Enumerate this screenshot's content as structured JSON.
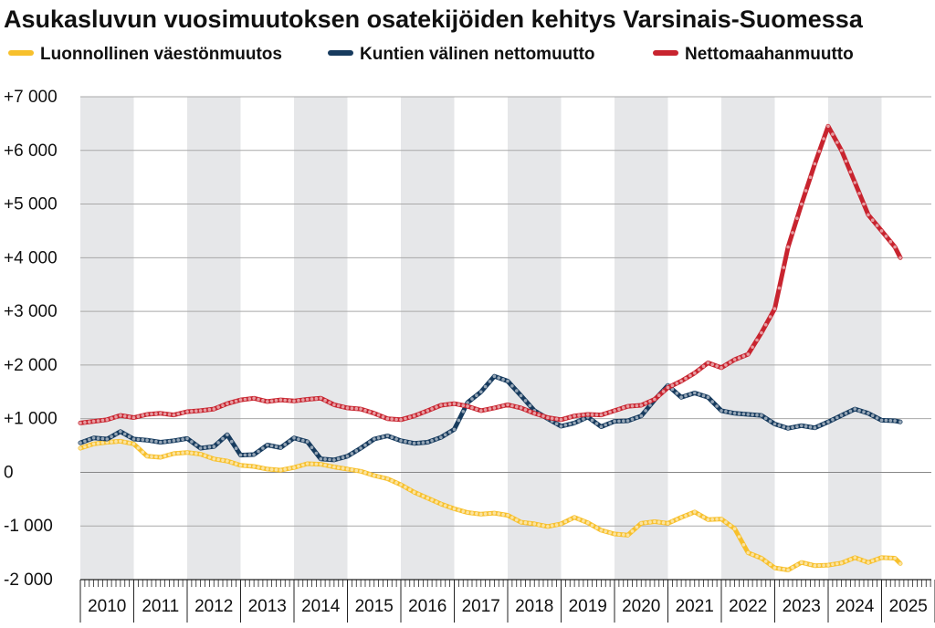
{
  "chart_data": {
    "type": "line",
    "title": "Asukasluvun vuosimuutoksen osatekijöiden kehitys Varsinais-Suomessa",
    "xlabel": "",
    "ylabel": "",
    "ylim": [
      -2000,
      7000
    ],
    "yticks": [
      -2000,
      -1000,
      0,
      1000,
      2000,
      3000,
      4000,
      5000,
      6000,
      7000
    ],
    "ytick_labels": [
      "-2 000",
      "-1 000",
      "0",
      "+1 000",
      "+2 000",
      "+3 000",
      "+4 000",
      "+5 000",
      "+6 000",
      "+7 000"
    ],
    "x_categories": [
      "2010",
      "2011",
      "2012",
      "2013",
      "2014",
      "2015",
      "2016",
      "2017",
      "2018",
      "2019",
      "2020",
      "2021",
      "2022",
      "2023",
      "2024",
      "2025"
    ],
    "x_range": [
      2010.0,
      2025.5
    ],
    "grid": true,
    "legend_position": "top",
    "alternating_year_bands": true,
    "band_color": "#e6e7e9",
    "series": [
      {
        "name": "Luonnollinen väestönmuutos",
        "color": "#f7c02c",
        "points": [
          [
            2010.0,
            450
          ],
          [
            2010.25,
            530
          ],
          [
            2010.5,
            560
          ],
          [
            2010.75,
            580
          ],
          [
            2011.0,
            530
          ],
          [
            2011.25,
            300
          ],
          [
            2011.5,
            280
          ],
          [
            2011.75,
            350
          ],
          [
            2012.0,
            370
          ],
          [
            2012.25,
            340
          ],
          [
            2012.5,
            250
          ],
          [
            2012.75,
            210
          ],
          [
            2013.0,
            130
          ],
          [
            2013.25,
            110
          ],
          [
            2013.5,
            60
          ],
          [
            2013.75,
            40
          ],
          [
            2014.0,
            90
          ],
          [
            2014.25,
            160
          ],
          [
            2014.5,
            150
          ],
          [
            2014.75,
            100
          ],
          [
            2015.0,
            60
          ],
          [
            2015.25,
            20
          ],
          [
            2015.5,
            -60
          ],
          [
            2015.75,
            -120
          ],
          [
            2016.0,
            -230
          ],
          [
            2016.25,
            -370
          ],
          [
            2016.5,
            -480
          ],
          [
            2016.75,
            -590
          ],
          [
            2017.0,
            -680
          ],
          [
            2017.25,
            -750
          ],
          [
            2017.5,
            -780
          ],
          [
            2017.75,
            -760
          ],
          [
            2018.0,
            -800
          ],
          [
            2018.25,
            -930
          ],
          [
            2018.5,
            -960
          ],
          [
            2018.75,
            -1010
          ],
          [
            2019.0,
            -960
          ],
          [
            2019.25,
            -840
          ],
          [
            2019.5,
            -940
          ],
          [
            2019.75,
            -1080
          ],
          [
            2020.0,
            -1150
          ],
          [
            2020.25,
            -1170
          ],
          [
            2020.5,
            -950
          ],
          [
            2020.75,
            -920
          ],
          [
            2021.0,
            -950
          ],
          [
            2021.25,
            -840
          ],
          [
            2021.5,
            -740
          ],
          [
            2021.75,
            -880
          ],
          [
            2022.0,
            -870
          ],
          [
            2022.25,
            -1050
          ],
          [
            2022.5,
            -1500
          ],
          [
            2022.75,
            -1600
          ],
          [
            2023.0,
            -1780
          ],
          [
            2023.25,
            -1820
          ],
          [
            2023.5,
            -1680
          ],
          [
            2023.75,
            -1740
          ],
          [
            2024.0,
            -1730
          ],
          [
            2024.25,
            -1690
          ],
          [
            2024.5,
            -1590
          ],
          [
            2024.75,
            -1680
          ],
          [
            2025.0,
            -1590
          ],
          [
            2025.25,
            -1600
          ],
          [
            2025.35,
            -1700
          ]
        ]
      },
      {
        "name": "Kuntien välinen nettomuutto",
        "color": "#173b5e",
        "points": [
          [
            2010.0,
            550
          ],
          [
            2010.25,
            640
          ],
          [
            2010.5,
            620
          ],
          [
            2010.75,
            760
          ],
          [
            2011.0,
            620
          ],
          [
            2011.25,
            600
          ],
          [
            2011.5,
            560
          ],
          [
            2011.75,
            590
          ],
          [
            2012.0,
            630
          ],
          [
            2012.25,
            450
          ],
          [
            2012.5,
            480
          ],
          [
            2012.75,
            700
          ],
          [
            2013.0,
            320
          ],
          [
            2013.25,
            330
          ],
          [
            2013.5,
            510
          ],
          [
            2013.75,
            460
          ],
          [
            2014.0,
            640
          ],
          [
            2014.25,
            570
          ],
          [
            2014.5,
            250
          ],
          [
            2014.75,
            230
          ],
          [
            2015.0,
            300
          ],
          [
            2015.25,
            450
          ],
          [
            2015.5,
            620
          ],
          [
            2015.75,
            680
          ],
          [
            2016.0,
            590
          ],
          [
            2016.25,
            540
          ],
          [
            2016.5,
            560
          ],
          [
            2016.75,
            650
          ],
          [
            2017.0,
            800
          ],
          [
            2017.25,
            1300
          ],
          [
            2017.5,
            1500
          ],
          [
            2017.75,
            1790
          ],
          [
            2018.0,
            1700
          ],
          [
            2018.25,
            1430
          ],
          [
            2018.5,
            1150
          ],
          [
            2018.75,
            1000
          ],
          [
            2019.0,
            860
          ],
          [
            2019.25,
            920
          ],
          [
            2019.5,
            1030
          ],
          [
            2019.75,
            850
          ],
          [
            2020.0,
            950
          ],
          [
            2020.25,
            960
          ],
          [
            2020.5,
            1050
          ],
          [
            2020.75,
            1350
          ],
          [
            2021.0,
            1620
          ],
          [
            2021.25,
            1400
          ],
          [
            2021.5,
            1480
          ],
          [
            2021.75,
            1400
          ],
          [
            2022.0,
            1150
          ],
          [
            2022.25,
            1100
          ],
          [
            2022.5,
            1080
          ],
          [
            2022.75,
            1060
          ],
          [
            2023.0,
            900
          ],
          [
            2023.25,
            820
          ],
          [
            2023.5,
            870
          ],
          [
            2023.75,
            830
          ],
          [
            2024.0,
            940
          ],
          [
            2024.25,
            1060
          ],
          [
            2024.5,
            1180
          ],
          [
            2024.75,
            1100
          ],
          [
            2025.0,
            970
          ],
          [
            2025.25,
            960
          ],
          [
            2025.35,
            940
          ]
        ]
      },
      {
        "name": "Nettomaahanmuutto",
        "color": "#c8242f",
        "points": [
          [
            2010.0,
            920
          ],
          [
            2010.25,
            950
          ],
          [
            2010.5,
            980
          ],
          [
            2010.75,
            1060
          ],
          [
            2011.0,
            1020
          ],
          [
            2011.25,
            1080
          ],
          [
            2011.5,
            1100
          ],
          [
            2011.75,
            1070
          ],
          [
            2012.0,
            1130
          ],
          [
            2012.25,
            1150
          ],
          [
            2012.5,
            1180
          ],
          [
            2012.75,
            1280
          ],
          [
            2013.0,
            1350
          ],
          [
            2013.25,
            1380
          ],
          [
            2013.5,
            1320
          ],
          [
            2013.75,
            1350
          ],
          [
            2014.0,
            1330
          ],
          [
            2014.25,
            1360
          ],
          [
            2014.5,
            1380
          ],
          [
            2014.75,
            1260
          ],
          [
            2015.0,
            1200
          ],
          [
            2015.25,
            1180
          ],
          [
            2015.5,
            1100
          ],
          [
            2015.75,
            1000
          ],
          [
            2016.0,
            980
          ],
          [
            2016.25,
            1050
          ],
          [
            2016.5,
            1150
          ],
          [
            2016.75,
            1250
          ],
          [
            2017.0,
            1280
          ],
          [
            2017.25,
            1230
          ],
          [
            2017.5,
            1150
          ],
          [
            2017.75,
            1200
          ],
          [
            2018.0,
            1260
          ],
          [
            2018.25,
            1200
          ],
          [
            2018.5,
            1100
          ],
          [
            2018.75,
            1020
          ],
          [
            2019.0,
            980
          ],
          [
            2019.25,
            1050
          ],
          [
            2019.5,
            1080
          ],
          [
            2019.75,
            1070
          ],
          [
            2020.0,
            1150
          ],
          [
            2020.25,
            1230
          ],
          [
            2020.5,
            1250
          ],
          [
            2020.75,
            1360
          ],
          [
            2021.0,
            1580
          ],
          [
            2021.25,
            1700
          ],
          [
            2021.5,
            1850
          ],
          [
            2021.75,
            2040
          ],
          [
            2022.0,
            1950
          ],
          [
            2022.25,
            2100
          ],
          [
            2022.5,
            2200
          ],
          [
            2022.75,
            2600
          ],
          [
            2023.0,
            3050
          ],
          [
            2023.25,
            4200
          ],
          [
            2023.5,
            5000
          ],
          [
            2023.75,
            5750
          ],
          [
            2024.0,
            6450
          ],
          [
            2024.25,
            6000
          ],
          [
            2024.5,
            5400
          ],
          [
            2024.75,
            4800
          ],
          [
            2025.0,
            4500
          ],
          [
            2025.25,
            4200
          ],
          [
            2025.35,
            4000
          ]
        ]
      }
    ]
  }
}
